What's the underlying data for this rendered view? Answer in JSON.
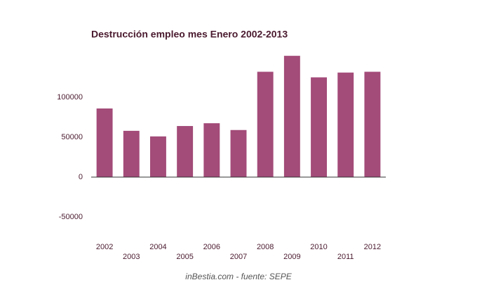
{
  "chart_data": {
    "type": "bar",
    "title": "Destrucción empleo mes Enero 2002-2013",
    "categories": [
      "2002",
      "2003",
      "2004",
      "2005",
      "2006",
      "2007",
      "2008",
      "2009",
      "2010",
      "2011",
      "2012"
    ],
    "values": [
      86000,
      58000,
      51000,
      64000,
      67500,
      59000,
      132000,
      152000,
      125000,
      131000,
      132000
    ],
    "color": "#a34b79",
    "ylim": [
      -70000,
      160000
    ],
    "yticks": [
      -50000,
      0,
      50000,
      100000
    ],
    "grid": false,
    "source": "inBestia.com - fuente: SEPE"
  }
}
